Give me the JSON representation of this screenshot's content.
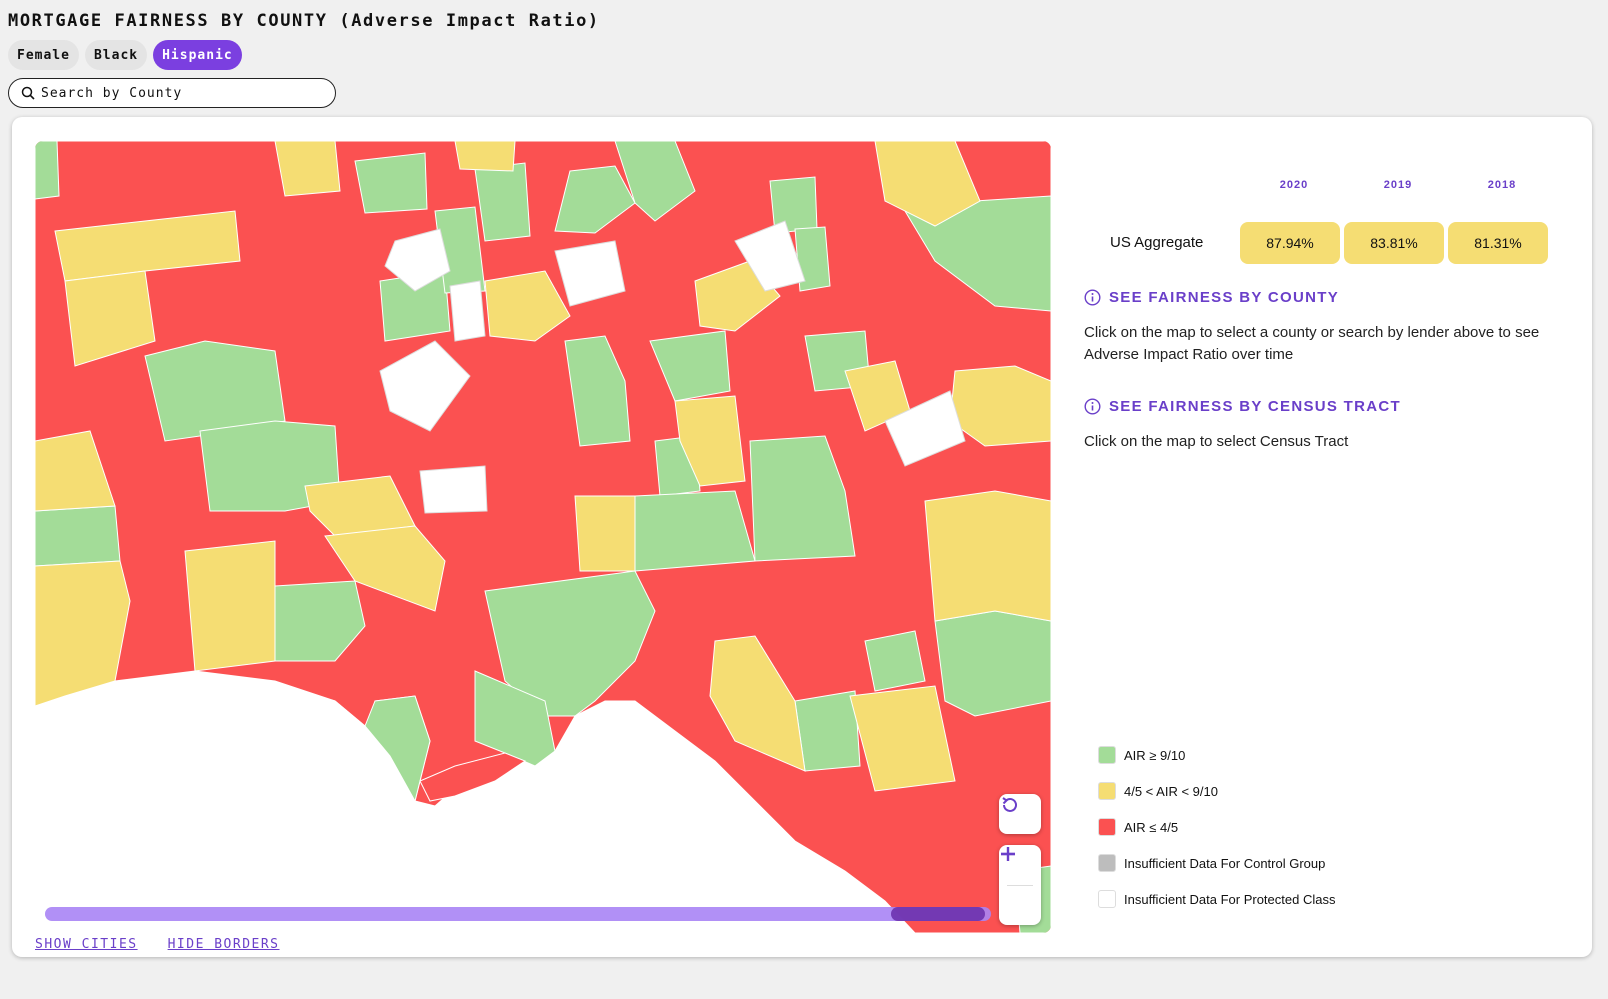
{
  "header": {
    "title": "MORTGAGE FAIRNESS BY COUNTY (Adverse Impact Ratio)"
  },
  "tabs": [
    {
      "label": "Female",
      "active": false
    },
    {
      "label": "Black",
      "active": false
    },
    {
      "label": "Hispanic",
      "active": true
    }
  ],
  "search": {
    "placeholder": "Search by County",
    "value": ""
  },
  "map": {
    "links": {
      "show_cities": "SHOW CITIES",
      "hide_borders": "HIDE BORDERS"
    },
    "time_slider_value": 0.93,
    "colors": {
      "green": "#a3dc98",
      "yellow": "#f5dd73",
      "red": "#fb5151",
      "gray": "#bdbdbd",
      "white": "#ffffff",
      "accent": "#6a3fc9"
    }
  },
  "aggregate": {
    "label": "US Aggregate",
    "years": [
      "2020",
      "2019",
      "2018"
    ],
    "values": [
      "87.94%",
      "83.81%",
      "81.31%"
    ]
  },
  "info": {
    "county_title": "SEE FAIRNESS BY COUNTY",
    "county_text": "Click on the map to select a county or search by lender above to see Adverse Impact Ratio over time",
    "tract_title": "SEE FAIRNESS BY CENSUS TRACT",
    "tract_text": "Click on the map to select Census Tract"
  },
  "legend": [
    {
      "label": "AIR ≥ 9/10",
      "color": "#a3dc98"
    },
    {
      "label": "4/5 < AIR < 9/10",
      "color": "#f5dd73"
    },
    {
      "label": "AIR ≤ 4/5",
      "color": "#fb5151"
    },
    {
      "label": "Insufficient Data For Control Group",
      "color": "#bdbdbd"
    },
    {
      "label": "Insufficient Data For Protected Class",
      "color": "#ffffff"
    }
  ]
}
